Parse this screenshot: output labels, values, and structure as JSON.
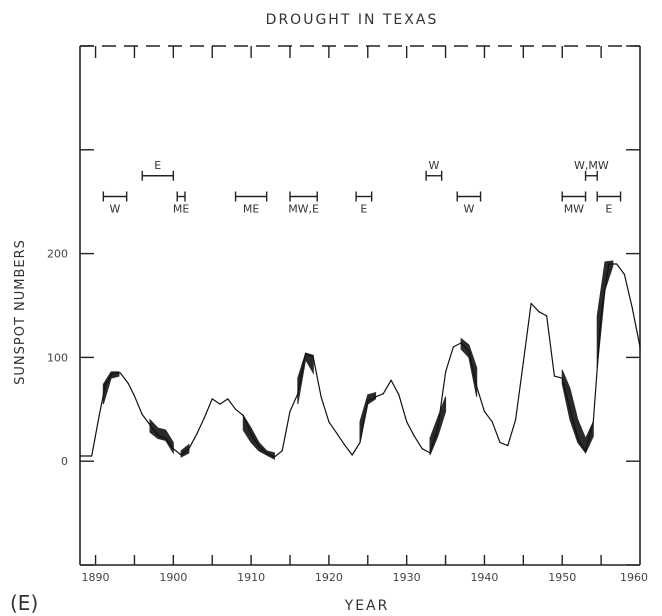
{
  "panel_label": "(E)",
  "chart_data": {
    "type": "line",
    "title": "DROUGHT IN TEXAS",
    "xlabel": "YEAR",
    "ylabel": "SUNSPOT NUMBERS",
    "xlim": [
      1888,
      1960
    ],
    "ylim": [
      -100,
      400
    ],
    "x_ticks": [
      1890,
      1900,
      1910,
      1920,
      1930,
      1940,
      1950,
      1960
    ],
    "x_tick_labels": [
      "1890",
      "1900",
      "1910",
      "1920",
      "1930",
      "1940",
      "1950",
      "1960"
    ],
    "y_ticks": [
      -100,
      0,
      100,
      200,
      300,
      400
    ],
    "y_tick_labels": [
      {
        "value": 0,
        "label": "0"
      },
      {
        "value": 100,
        "label": "100"
      },
      {
        "value": 200,
        "label": "200"
      }
    ],
    "grid": false,
    "line_color": "#111111",
    "band_color": "#2a2a2a",
    "series": [
      {
        "x": [
          1888,
          1889.5,
          1890.5,
          1891.3,
          1892.2,
          1893.2,
          1894.2,
          1895,
          1896,
          1897,
          1898,
          1899,
          1900,
          1901,
          1902,
          1903,
          1904,
          1905,
          1906,
          1907,
          1908,
          1909,
          1910,
          1911,
          1912,
          1913,
          1914,
          1915,
          1916,
          1917,
          1918,
          1919,
          1920,
          1921,
          1922,
          1923,
          1924,
          1925,
          1926,
          1927,
          1928,
          1929,
          1930,
          1931,
          1932,
          1933,
          1934,
          1935,
          1936,
          1937,
          1938,
          1939,
          1940,
          1941,
          1942,
          1943,
          1944,
          1945,
          1946,
          1947,
          1948,
          1949,
          1950,
          1951,
          1952,
          1953,
          1954,
          1955,
          1956,
          1957,
          1958,
          1959,
          1960
        ],
        "y": [
          5,
          5,
          45,
          75,
          85,
          85,
          75,
          63,
          45,
          35,
          25,
          22,
          12,
          6,
          12,
          26,
          42,
          60,
          55,
          60,
          50,
          44,
          26,
          14,
          8,
          4,
          10,
          48,
          65,
          104,
          100,
          62,
          38,
          27,
          16,
          6,
          18,
          58,
          62,
          65,
          78,
          64,
          38,
          24,
          12,
          8,
          32,
          86,
          110,
          114,
          106,
          72,
          48,
          38,
          18,
          15,
          40,
          95,
          152,
          144,
          140,
          82,
          80,
          50,
          22,
          10,
          38,
          140,
          190,
          190,
          180,
          148,
          110
        ]
      }
    ],
    "bands": [
      {
        "x": [
          1891,
          1892,
          1893
        ],
        "lower": [
          55,
          80,
          82
        ],
        "upper": [
          74,
          86,
          86
        ]
      },
      {
        "x": [
          1897,
          1898,
          1899,
          1900
        ],
        "lower": [
          28,
          22,
          20,
          8
        ],
        "upper": [
          40,
          32,
          30,
          18
        ]
      },
      {
        "x": [
          1901,
          1902
        ],
        "lower": [
          4,
          8
        ],
        "upper": [
          10,
          16
        ]
      },
      {
        "x": [
          1909,
          1910,
          1911,
          1912,
          1913
        ],
        "lower": [
          30,
          18,
          10,
          6,
          2
        ],
        "upper": [
          44,
          32,
          18,
          10,
          8
        ]
      },
      {
        "x": [
          1916,
          1917,
          1918
        ],
        "lower": [
          55,
          98,
          85
        ],
        "upper": [
          80,
          104,
          102
        ]
      },
      {
        "x": [
          1924,
          1925,
          1926
        ],
        "lower": [
          18,
          55,
          60
        ],
        "upper": [
          38,
          64,
          66
        ]
      },
      {
        "x": [
          1933,
          1934,
          1935
        ],
        "lower": [
          6,
          24,
          48
        ],
        "upper": [
          22,
          42,
          62
        ]
      },
      {
        "x": [
          1937,
          1938,
          1939
        ],
        "lower": [
          108,
          100,
          62
        ],
        "upper": [
          118,
          112,
          90
        ]
      },
      {
        "x": [
          1950,
          1951,
          1952,
          1953,
          1954
        ],
        "lower": [
          75,
          40,
          18,
          8,
          24
        ],
        "upper": [
          88,
          70,
          40,
          22,
          38
        ]
      },
      {
        "x": [
          1954.5,
          1955.5,
          1956.5
        ],
        "lower": [
          90,
          165,
          188
        ],
        "upper": [
          140,
          192,
          193
        ]
      }
    ],
    "drought_periods": [
      {
        "label": "W",
        "x": [
          1891,
          1894
        ],
        "level": 255,
        "label_pos": "below"
      },
      {
        "label": "E",
        "x": [
          1896,
          1900
        ],
        "level": 275,
        "label_pos": "above"
      },
      {
        "label": "ME",
        "x": [
          1900.5,
          1901.5
        ],
        "level": 255,
        "label_pos": "below"
      },
      {
        "label": "ME",
        "x": [
          1908,
          1912
        ],
        "level": 255,
        "label_pos": "below"
      },
      {
        "label": "MW,E",
        "x": [
          1915,
          1918.5
        ],
        "level": 255,
        "label_pos": "below"
      },
      {
        "label": "E",
        "x": [
          1923.5,
          1925.5
        ],
        "level": 255,
        "label_pos": "below"
      },
      {
        "label": "W",
        "x": [
          1932.5,
          1934.5
        ],
        "level": 275,
        "label_pos": "above"
      },
      {
        "label": "W",
        "x": [
          1936.5,
          1939.5
        ],
        "level": 255,
        "label_pos": "below"
      },
      {
        "label": "MW",
        "x": [
          1950,
          1953
        ],
        "level": 255,
        "label_pos": "below"
      },
      {
        "label": "W,MW",
        "x": [
          1953,
          1954.5
        ],
        "level": 275,
        "label_pos": "above"
      },
      {
        "label": "E",
        "x": [
          1954.5,
          1957.5
        ],
        "level": 255,
        "label_pos": "below"
      }
    ]
  }
}
